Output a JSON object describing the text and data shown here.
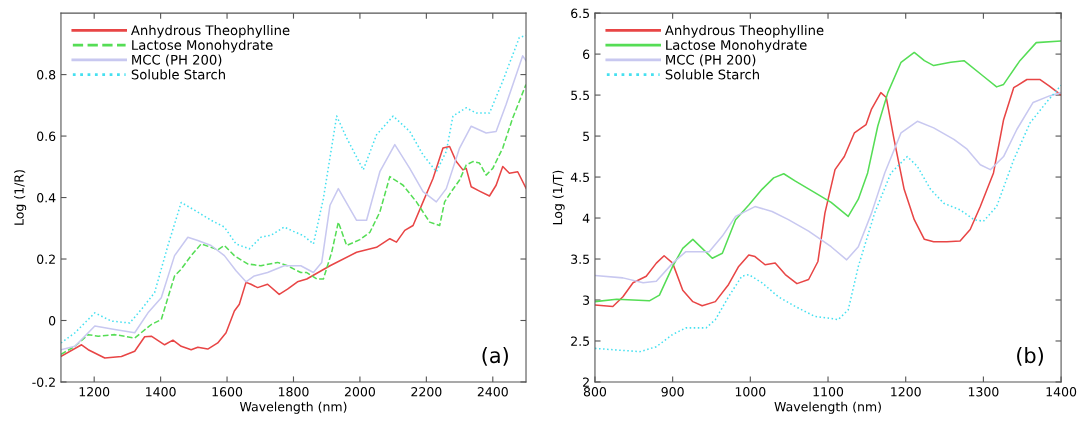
{
  "chart_data": [
    {
      "type": "line",
      "xlabel": "Wavelength (nm)",
      "ylabel": "Log (1/R)",
      "xlim": [
        1100,
        2500
      ],
      "xticks": [
        1200,
        1400,
        1600,
        1800,
        2000,
        2200,
        2400
      ],
      "ylim": [
        -0.2,
        1.0
      ],
      "yticks": [
        -0.2,
        0,
        0.2,
        0.4,
        0.6,
        0.8
      ],
      "grid": false,
      "legend": "top left",
      "annotations": [
        "(a)"
      ],
      "series": [
        {
          "name": "Anhydrous Theophylline",
          "color": "#e84545",
          "line_style": "solid",
          "x": [
            1100,
            1162,
            1182,
            1232,
            1282,
            1322,
            1352,
            1372,
            1412,
            1437,
            1462,
            1492,
            1512,
            1542,
            1572,
            1597,
            1622,
            1637,
            1657,
            1672,
            1692,
            1722,
            1757,
            1782,
            1812,
            1840,
            1910,
            1990,
            2050,
            2090,
            2110,
            2135,
            2160,
            2190,
            2220,
            2250,
            2270,
            2290,
            2310,
            2320,
            2335,
            2360,
            2390,
            2410,
            2430,
            2450,
            2475,
            2500
          ],
          "values": [
            -0.117,
            -0.079,
            -0.095,
            -0.122,
            -0.117,
            -0.1,
            -0.053,
            -0.051,
            -0.079,
            -0.064,
            -0.084,
            -0.095,
            -0.087,
            -0.093,
            -0.073,
            -0.04,
            0.031,
            0.053,
            0.124,
            0.118,
            0.107,
            0.118,
            0.085,
            0.102,
            0.126,
            0.135,
            0.178,
            0.222,
            0.238,
            0.266,
            0.255,
            0.293,
            0.309,
            0.386,
            0.462,
            0.561,
            0.566,
            0.517,
            0.49,
            0.495,
            0.435,
            0.421,
            0.405,
            0.44,
            0.501,
            0.479,
            0.484,
            0.43
          ]
        },
        {
          "name": "Lactose Monohydrate",
          "color": "#55dd55",
          "line_style": "dashed",
          "x": [
            1100,
            1142,
            1182,
            1212,
            1262,
            1322,
            1372,
            1402,
            1442,
            1462,
            1492,
            1522,
            1552,
            1572,
            1592,
            1622,
            1662,
            1702,
            1752,
            1782,
            1822,
            1840,
            1870,
            1890,
            1915,
            1935,
            1960,
            2000,
            2030,
            2060,
            2090,
            2130,
            2170,
            2210,
            2240,
            2255,
            2275,
            2300,
            2320,
            2340,
            2360,
            2380,
            2400,
            2430,
            2460,
            2500
          ],
          "values": [
            -0.11,
            -0.084,
            -0.046,
            -0.051,
            -0.046,
            -0.057,
            -0.013,
            0.003,
            0.145,
            0.167,
            0.211,
            0.249,
            0.238,
            0.23,
            0.244,
            0.211,
            0.184,
            0.178,
            0.189,
            0.178,
            0.156,
            0.156,
            0.135,
            0.135,
            0.222,
            0.32,
            0.244,
            0.263,
            0.287,
            0.353,
            0.468,
            0.44,
            0.386,
            0.32,
            0.309,
            0.386,
            0.419,
            0.457,
            0.506,
            0.517,
            0.512,
            0.473,
            0.495,
            0.561,
            0.659,
            0.768
          ]
        },
        {
          "name": "MCC (PH 200)",
          "color": "#c8c8f0",
          "line_style": "solid",
          "x": [
            1100,
            1142,
            1202,
            1262,
            1322,
            1362,
            1402,
            1442,
            1482,
            1512,
            1552,
            1592,
            1627,
            1657,
            1682,
            1722,
            1772,
            1822,
            1860,
            1885,
            1910,
            1935,
            1990,
            2020,
            2060,
            2105,
            2150,
            2190,
            2230,
            2260,
            2300,
            2335,
            2380,
            2410,
            2440,
            2490,
            2500
          ],
          "values": [
            -0.095,
            -0.084,
            -0.018,
            -0.029,
            -0.04,
            0.025,
            0.074,
            0.211,
            0.271,
            0.26,
            0.244,
            0.211,
            0.162,
            0.126,
            0.145,
            0.156,
            0.178,
            0.178,
            0.156,
            0.189,
            0.375,
            0.429,
            0.326,
            0.326,
            0.484,
            0.572,
            0.495,
            0.419,
            0.386,
            0.429,
            0.561,
            0.632,
            0.61,
            0.615,
            0.703,
            0.861,
            0.845
          ]
        },
        {
          "name": "Soluble Starch",
          "color": "#45e0f0",
          "line_style": "dotted",
          "x": [
            1100,
            1142,
            1202,
            1252,
            1307,
            1342,
            1382,
            1422,
            1462,
            1502,
            1552,
            1592,
            1627,
            1667,
            1702,
            1732,
            1772,
            1800,
            1830,
            1860,
            1890,
            1930,
            1960,
            2010,
            2050,
            2100,
            2150,
            2190,
            2230,
            2260,
            2280,
            2320,
            2350,
            2390,
            2430,
            2480,
            2500
          ],
          "values": [
            -0.073,
            -0.04,
            0.025,
            -0.002,
            -0.008,
            0.036,
            0.091,
            0.244,
            0.384,
            0.359,
            0.326,
            0.304,
            0.249,
            0.233,
            0.271,
            0.277,
            0.304,
            0.29,
            0.276,
            0.249,
            0.397,
            0.665,
            0.594,
            0.49,
            0.604,
            0.665,
            0.615,
            0.539,
            0.484,
            0.55,
            0.665,
            0.692,
            0.675,
            0.675,
            0.779,
            0.921,
            0.927
          ]
        }
      ]
    },
    {
      "type": "line",
      "xlabel": "Wavelength (nm)",
      "ylabel": "Log (1/T)",
      "xlim": [
        800,
        1400
      ],
      "xticks": [
        800,
        900,
        1000,
        1100,
        1200,
        1300,
        1400
      ],
      "ylim": [
        2,
        6.5
      ],
      "yticks": [
        2,
        2.5,
        3,
        3.5,
        4,
        4.5,
        5,
        5.5,
        6,
        6.5
      ],
      "grid": false,
      "legend": "top left",
      "annotations": [
        "(b)"
      ],
      "series": [
        {
          "name": "Anhydrous Theophylline",
          "color": "#e84545",
          "line_style": "solid",
          "x": [
            800,
            823,
            836,
            849,
            866,
            879,
            889,
            900,
            913,
            926,
            938,
            955,
            972,
            985,
            998,
            1006,
            1019,
            1032,
            1045,
            1060,
            1075,
            1087,
            1096,
            1109,
            1121,
            1134,
            1143,
            1149,
            1156,
            1168,
            1175,
            1185,
            1198,
            1211,
            1224,
            1236,
            1253,
            1270,
            1283,
            1296,
            1313,
            1326,
            1339,
            1356,
            1373,
            1385,
            1400
          ],
          "values": [
            2.94,
            2.92,
            3.04,
            3.21,
            3.29,
            3.45,
            3.54,
            3.45,
            3.12,
            2.98,
            2.93,
            2.98,
            3.19,
            3.41,
            3.55,
            3.53,
            3.43,
            3.45,
            3.31,
            3.2,
            3.25,
            3.47,
            4.06,
            4.59,
            4.75,
            5.04,
            5.1,
            5.14,
            5.33,
            5.53,
            5.47,
            4.96,
            4.35,
            3.98,
            3.74,
            3.71,
            3.71,
            3.72,
            3.86,
            4.14,
            4.55,
            5.2,
            5.59,
            5.69,
            5.69,
            5.61,
            5.5
          ]
        },
        {
          "name": "Lactose Monohydrate",
          "color": "#55dd55",
          "line_style": "solid",
          "x": [
            800,
            828,
            870,
            883,
            900,
            913,
            926,
            938,
            951,
            964,
            981,
            998,
            1015,
            1030,
            1043,
            1058,
            1083,
            1104,
            1126,
            1139,
            1151,
            1164,
            1177,
            1194,
            1211,
            1224,
            1236,
            1258,
            1275,
            1300,
            1317,
            1326,
            1347,
            1368,
            1400
          ],
          "values": [
            2.98,
            3.01,
            2.99,
            3.06,
            3.41,
            3.63,
            3.74,
            3.63,
            3.51,
            3.57,
            3.98,
            4.16,
            4.35,
            4.49,
            4.54,
            4.45,
            4.31,
            4.19,
            4.02,
            4.23,
            4.55,
            5.12,
            5.53,
            5.9,
            6.02,
            5.92,
            5.86,
            5.9,
            5.92,
            5.73,
            5.6,
            5.63,
            5.92,
            6.14,
            6.16
          ]
        },
        {
          "name": "MCC (PH 200)",
          "color": "#c8c8f0",
          "line_style": "solid",
          "x": [
            800,
            836,
            862,
            879,
            900,
            917,
            947,
            964,
            981,
            1006,
            1028,
            1049,
            1075,
            1104,
            1124,
            1139,
            1156,
            1173,
            1194,
            1215,
            1236,
            1262,
            1279,
            1296,
            1309,
            1326,
            1343,
            1364,
            1385,
            1400
          ],
          "values": [
            3.3,
            3.27,
            3.21,
            3.23,
            3.45,
            3.59,
            3.59,
            3.78,
            4.02,
            4.14,
            4.08,
            3.98,
            3.84,
            3.65,
            3.49,
            3.65,
            4.06,
            4.55,
            5.04,
            5.18,
            5.1,
            4.96,
            4.84,
            4.65,
            4.59,
            4.75,
            5.08,
            5.41,
            5.49,
            5.53
          ]
        },
        {
          "name": "Soluble Starch",
          "color": "#45e0f0",
          "line_style": "dotted",
          "x": [
            800,
            828,
            858,
            879,
            900,
            917,
            943,
            955,
            972,
            989,
            998,
            1015,
            1036,
            1058,
            1083,
            1100,
            1113,
            1126,
            1139,
            1160,
            1181,
            1202,
            1215,
            1232,
            1249,
            1270,
            1288,
            1300,
            1317,
            1339,
            1360,
            1381,
            1400
          ],
          "values": [
            2.41,
            2.39,
            2.37,
            2.43,
            2.58,
            2.66,
            2.66,
            2.76,
            3.04,
            3.29,
            3.31,
            3.21,
            3.04,
            2.92,
            2.8,
            2.78,
            2.76,
            2.88,
            3.41,
            4.06,
            4.55,
            4.75,
            4.63,
            4.35,
            4.18,
            4.1,
            3.98,
            3.96,
            4.14,
            4.71,
            5.16,
            5.41,
            5.62
          ]
        }
      ]
    }
  ]
}
